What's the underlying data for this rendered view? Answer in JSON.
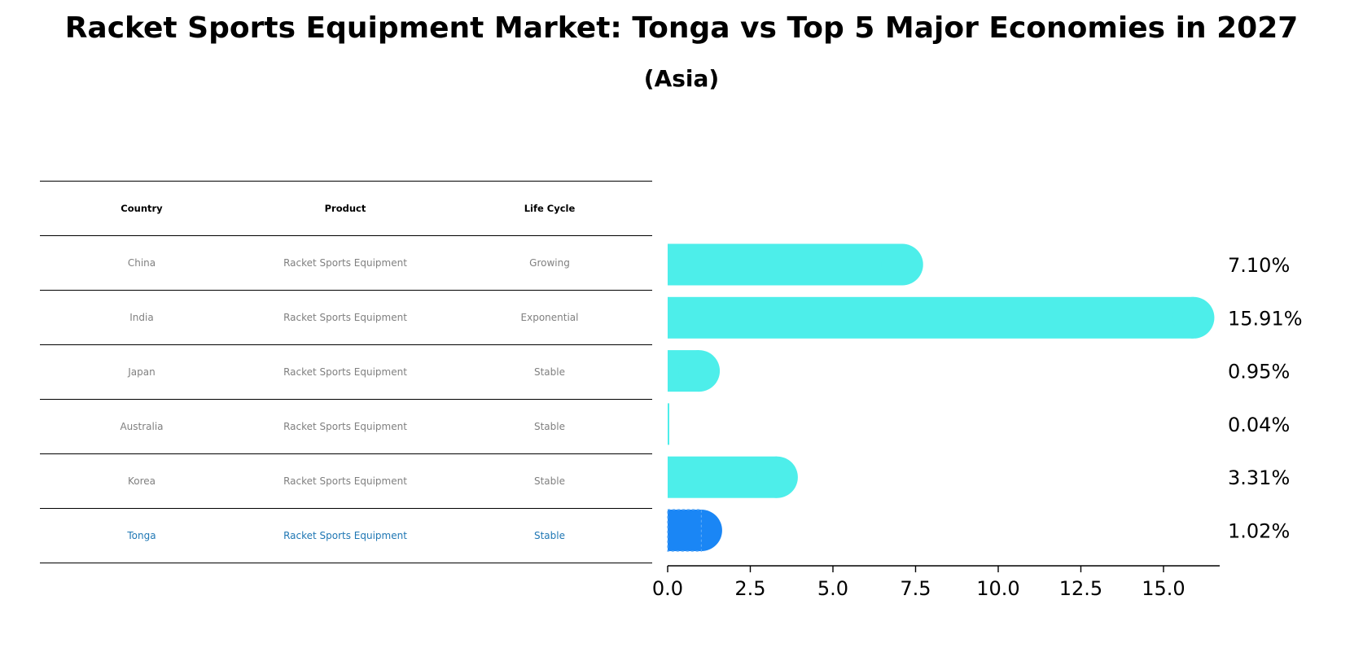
{
  "title": "Racket Sports Equipment Market: Tonga vs Top 5 Major Economies in 2027",
  "subtitle": "(Asia)",
  "table": {
    "headers": [
      "Country",
      "Product",
      "Life Cycle"
    ],
    "rows": [
      {
        "country": "China",
        "product": "Racket Sports Equipment",
        "life_cycle": "Growing",
        "highlight": false
      },
      {
        "country": "India",
        "product": "Racket Sports Equipment",
        "life_cycle": "Exponential",
        "highlight": false
      },
      {
        "country": "Japan",
        "product": "Racket Sports Equipment",
        "life_cycle": "Stable",
        "highlight": false
      },
      {
        "country": "Australia",
        "product": "Racket Sports Equipment",
        "life_cycle": "Stable",
        "highlight": false
      },
      {
        "country": "Korea",
        "product": "Racket Sports Equipment",
        "life_cycle": "Stable",
        "highlight": false
      },
      {
        "country": "Tonga",
        "product": "Racket Sports Equipment",
        "life_cycle": "Stable",
        "highlight": true
      }
    ]
  },
  "chart_data": {
    "type": "bar",
    "orientation": "horizontal",
    "title": "Racket Sports Equipment Market: Tonga vs Top 5 Major Economies in 2027",
    "subtitle": "(Asia)",
    "categories": [
      "China",
      "India",
      "Japan",
      "Australia",
      "Korea",
      "Tonga"
    ],
    "values": [
      7.1,
      15.91,
      0.95,
      0.04,
      3.31,
      1.02
    ],
    "value_labels": [
      "7.10%",
      "15.91%",
      "0.95%",
      "0.04%",
      "3.31%",
      "1.02%"
    ],
    "highlight_index": 5,
    "xlim": [
      0,
      16.7
    ],
    "xticks": [
      0.0,
      2.5,
      5.0,
      7.5,
      10.0,
      12.5,
      15.0
    ],
    "xtick_labels": [
      "0.0",
      "2.5",
      "5.0",
      "7.5",
      "10.0",
      "12.5",
      "15.0"
    ],
    "xlabel": "",
    "ylabel": "",
    "grid": false,
    "colors": {
      "default": "#4deeea",
      "highlight": "#1a86f5"
    }
  }
}
